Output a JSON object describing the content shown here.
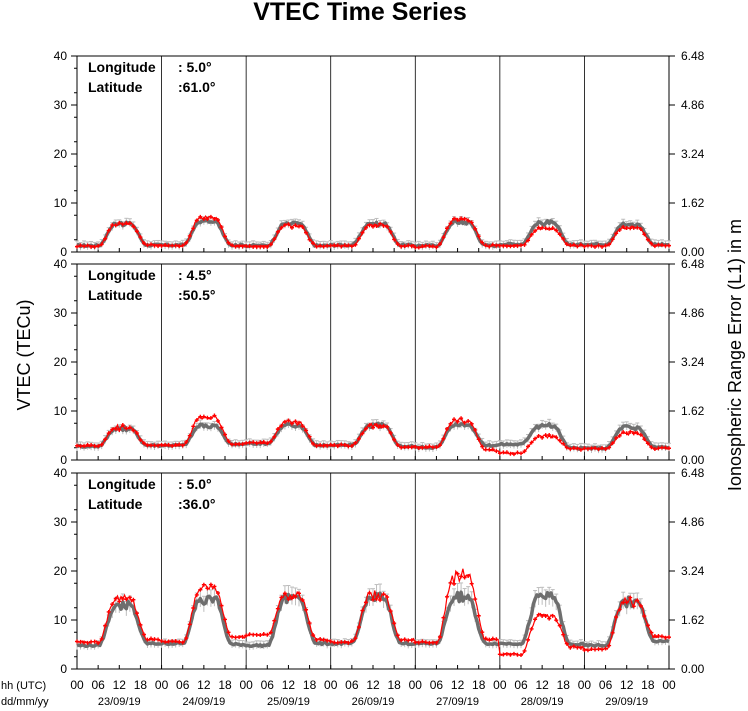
{
  "chart_data": {
    "type": "line",
    "title": "VTEC Time Series",
    "ylabel": "VTEC (TECu)",
    "y2label": "Ionospheric Range Error (L1) in m",
    "xlabel_lines": [
      "hh (UTC)",
      "dd/mm/yy"
    ],
    "ylim": [
      0,
      40
    ],
    "y2lim": [
      0,
      6.48
    ],
    "yticks": [
      "0",
      "10",
      "20",
      "30",
      "40"
    ],
    "y2ticks": [
      "0.00",
      "1.62",
      "3.24",
      "4.86",
      "6.48"
    ],
    "hour_ticks": [
      "00",
      "06",
      "12",
      "18"
    ],
    "final_hour_tick": "00",
    "days": [
      "23/09/19",
      "24/09/19",
      "25/09/19",
      "26/09/19",
      "27/09/19",
      "28/09/19",
      "29/09/19"
    ],
    "series_colors": {
      "observed": "#ff0000",
      "reference": "#6e6e6e",
      "errorbars": "#bdbdbd"
    },
    "panels": [
      {
        "longitude_label": "Longitude",
        "longitude_value": ":   5.0°",
        "latitude_label": "Latitude",
        "latitude_value": ":61.0°",
        "reference": [
          1.3,
          5.8,
          1.4,
          1.4,
          6.2,
          1.4,
          1.3,
          5.8,
          1.3,
          1.4,
          5.8,
          1.4,
          1.3,
          6.1,
          1.3,
          1.6,
          5.9,
          1.5,
          1.6,
          5.6,
          1.5
        ],
        "observed": [
          1.2,
          5.8,
          1.4,
          1.3,
          7.0,
          1.3,
          1.2,
          5.4,
          1.3,
          1.2,
          5.5,
          1.3,
          1.1,
          6.5,
          1.3,
          1.3,
          4.8,
          1.3,
          1.2,
          5.0,
          1.3
        ]
      },
      {
        "longitude_label": "Longitude",
        "longitude_value": ":   4.5°",
        "latitude_label": "Latitude",
        "latitude_value": ":50.5°",
        "reference": [
          2.8,
          6.4,
          3.0,
          3.0,
          7.0,
          3.2,
          3.4,
          7.0,
          3.0,
          3.0,
          7.0,
          2.8,
          2.6,
          7.2,
          3.0,
          3.2,
          7.0,
          2.4,
          2.4,
          6.6,
          2.6
        ],
        "observed": [
          2.9,
          6.6,
          3.0,
          3.0,
          8.8,
          3.3,
          3.5,
          7.6,
          3.0,
          3.0,
          7.0,
          2.7,
          2.6,
          8.0,
          2.0,
          1.4,
          4.8,
          2.3,
          2.3,
          5.4,
          2.4
        ]
      },
      {
        "longitude_label": "Longitude",
        "longitude_value": ":   5.0°",
        "latitude_label": "Latitude",
        "latitude_value": ":36.0°",
        "reference": [
          4.8,
          13.0,
          5.2,
          5.2,
          14.5,
          5.0,
          4.8,
          14.5,
          5.2,
          5.2,
          14.5,
          5.2,
          5.2,
          14.5,
          5.2,
          5.2,
          14.8,
          5.0,
          4.8,
          13.5,
          5.6
        ],
        "observed": [
          5.5,
          14.5,
          6.0,
          5.5,
          16.5,
          6.5,
          7.0,
          15.0,
          6.0,
          5.5,
          15.0,
          6.0,
          5.5,
          19.0,
          6.0,
          3.0,
          11.0,
          4.5,
          4.0,
          13.5,
          6.5
        ]
      }
    ]
  }
}
